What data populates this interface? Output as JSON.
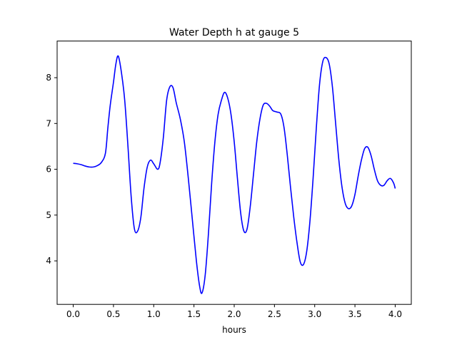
{
  "chart_data": {
    "type": "line",
    "title": "Water Depth h at gauge 5",
    "xlabel": "hours",
    "ylabel": "",
    "xlim": [
      -0.2,
      4.2
    ],
    "ylim": [
      3.05,
      8.8
    ],
    "xticks": [
      0.0,
      0.5,
      1.0,
      1.5,
      2.0,
      2.5,
      3.0,
      3.5,
      4.0
    ],
    "xtick_labels": [
      "0.0",
      "0.5",
      "1.0",
      "1.5",
      "2.0",
      "2.5",
      "3.0",
      "3.5",
      "4.0"
    ],
    "yticks": [
      4,
      5,
      6,
      7,
      8
    ],
    "ytick_labels": [
      "4",
      "5",
      "6",
      "7",
      "8"
    ],
    "grid": false,
    "series": [
      {
        "color": "#0000ff",
        "x": [
          0.0,
          0.05,
          0.1,
          0.15,
          0.2,
          0.25,
          0.3,
          0.35,
          0.4,
          0.43,
          0.46,
          0.5,
          0.53,
          0.56,
          0.6,
          0.64,
          0.68,
          0.72,
          0.76,
          0.8,
          0.84,
          0.88,
          0.92,
          0.96,
          1.0,
          1.05,
          1.08,
          1.12,
          1.16,
          1.2,
          1.24,
          1.28,
          1.33,
          1.38,
          1.43,
          1.48,
          1.53,
          1.57,
          1.6,
          1.64,
          1.68,
          1.72,
          1.76,
          1.8,
          1.84,
          1.88,
          1.92,
          1.96,
          2.0,
          2.04,
          2.08,
          2.12,
          2.16,
          2.2,
          2.24,
          2.28,
          2.32,
          2.36,
          2.4,
          2.44,
          2.48,
          2.53,
          2.58,
          2.62,
          2.66,
          2.7,
          2.74,
          2.78,
          2.82,
          2.86,
          2.9,
          2.94,
          2.98,
          3.02,
          3.06,
          3.1,
          3.14,
          3.18,
          3.22,
          3.26,
          3.3,
          3.34,
          3.38,
          3.42,
          3.46,
          3.5,
          3.54,
          3.58,
          3.62,
          3.66,
          3.7,
          3.74,
          3.78,
          3.82,
          3.86,
          3.9,
          3.94,
          3.98,
          4.0
        ],
        "y": [
          6.13,
          6.12,
          6.1,
          6.07,
          6.05,
          6.05,
          6.08,
          6.15,
          6.35,
          6.9,
          7.4,
          7.9,
          8.3,
          8.47,
          8.1,
          7.5,
          6.5,
          5.4,
          4.7,
          4.65,
          4.95,
          5.6,
          6.05,
          6.2,
          6.12,
          6.0,
          6.15,
          6.7,
          7.5,
          7.8,
          7.78,
          7.45,
          7.1,
          6.6,
          5.8,
          4.9,
          4.0,
          3.45,
          3.3,
          3.7,
          4.6,
          5.7,
          6.6,
          7.2,
          7.5,
          7.68,
          7.55,
          7.2,
          6.6,
          5.8,
          5.05,
          4.65,
          4.7,
          5.2,
          5.9,
          6.6,
          7.1,
          7.4,
          7.44,
          7.38,
          7.28,
          7.25,
          7.2,
          6.9,
          6.3,
          5.6,
          4.95,
          4.4,
          3.98,
          3.92,
          4.2,
          4.85,
          5.8,
          6.9,
          7.85,
          8.35,
          8.44,
          8.3,
          7.8,
          7.0,
          6.2,
          5.6,
          5.25,
          5.14,
          5.2,
          5.45,
          5.85,
          6.2,
          6.45,
          6.48,
          6.3,
          6.0,
          5.75,
          5.65,
          5.65,
          5.75,
          5.8,
          5.7,
          5.58
        ]
      }
    ]
  }
}
